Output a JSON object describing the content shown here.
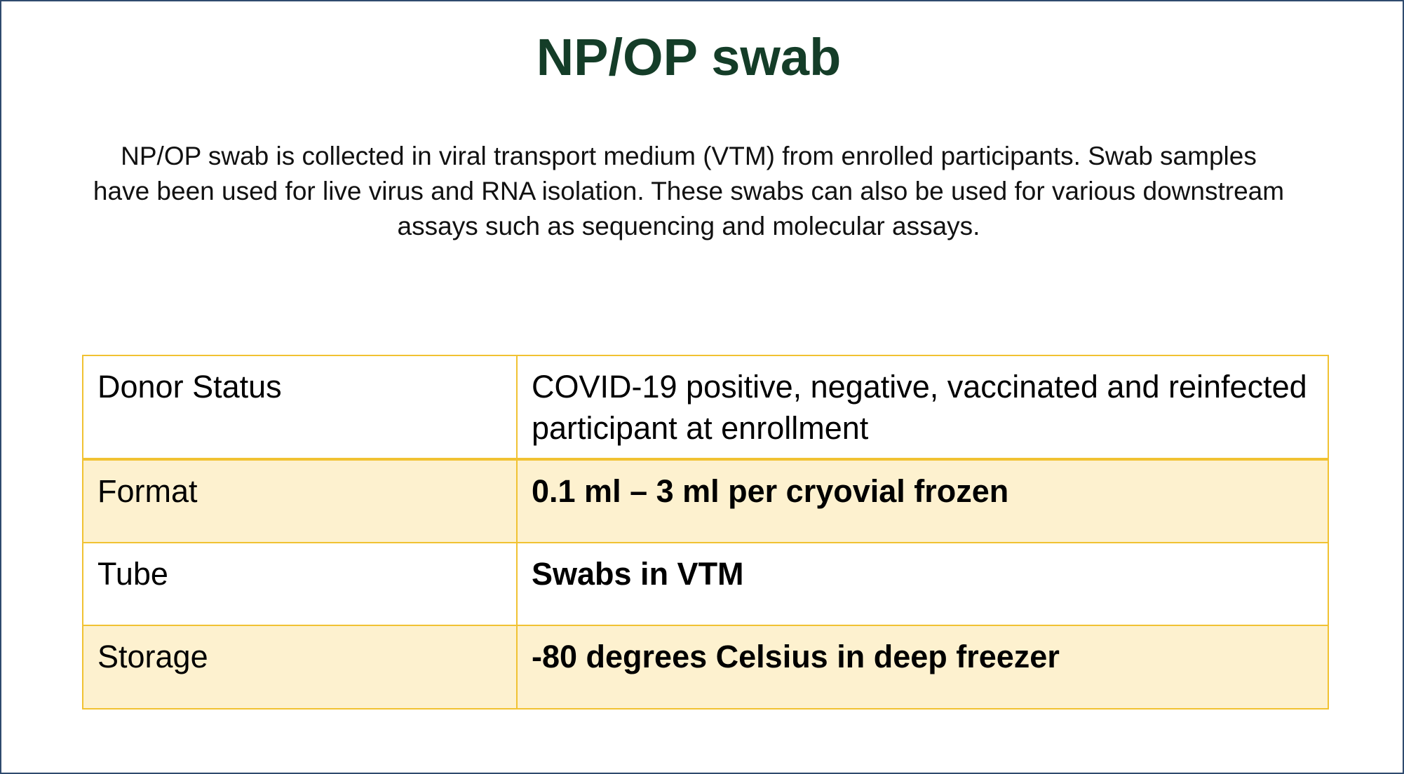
{
  "slide": {
    "title": "NP/OP swab",
    "description": "NP/OP swab is collected in viral transport medium (VTM) from enrolled participants. Swab samples have been used for live virus and  RNA isolation. These swabs can also be used for various downstream assays such as sequencing and molecular assays.",
    "table": {
      "rows": [
        {
          "label": "Donor Status",
          "value": "COVID-19 positive, negative, vaccinated and reinfected  participant at enrollment"
        },
        {
          "label": "Format",
          "value": "0.1 ml – 3 ml per cryovial frozen"
        },
        {
          "label": "Tube",
          "value": "Swabs in VTM"
        },
        {
          "label": "Storage",
          "value": "-80 degrees Celsius in deep freezer"
        }
      ]
    }
  },
  "colors": {
    "title": "#143d28",
    "table_border": "#f1c232",
    "alt_row_fill": "#fdf1cf",
    "slide_border": "#2f4a6e"
  }
}
